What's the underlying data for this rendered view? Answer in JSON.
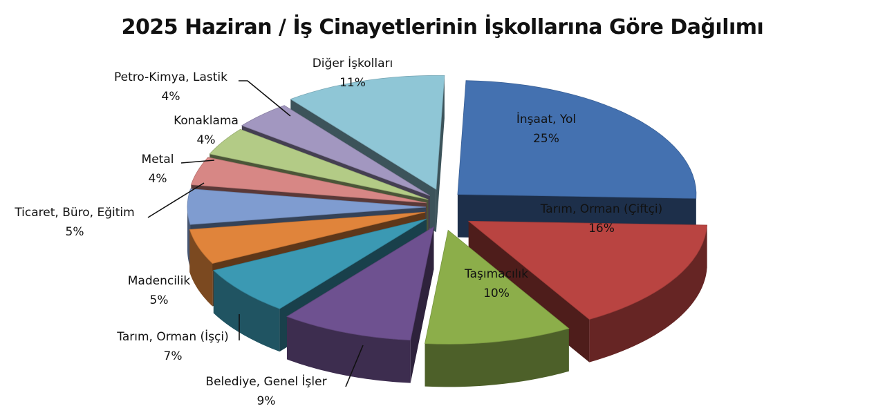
{
  "chart_data": {
    "type": "pie",
    "title": "2025 Haziran / İş Cinayetlerinin İşkollarına Göre Dağılımı",
    "slices": [
      {
        "name": "İnşaat, Yol",
        "value": 25,
        "label": "25%",
        "color": "#4471b0"
      },
      {
        "name": "Tarım, Orman (Çiftçi)",
        "value": 16,
        "label": "16%",
        "color": "#b94441"
      },
      {
        "name": "Taşımacılık",
        "value": 10,
        "label": "10%",
        "color": "#8cae4a"
      },
      {
        "name": "Belediye, Genel İşler",
        "value": 9,
        "label": "9%",
        "color": "#6e5190"
      },
      {
        "name": "Tarım, Orman (İşçi)",
        "value": 7,
        "label": "7%",
        "color": "#3b99b3"
      },
      {
        "name": "Madencilik",
        "value": 5,
        "label": "5%",
        "color": "#e0843b"
      },
      {
        "name": "Ticaret, Büro, Eğitim",
        "value": 5,
        "label": "5%",
        "color": "#7f9cd0"
      },
      {
        "name": "Metal",
        "value": 4,
        "label": "4%",
        "color": "#d78785"
      },
      {
        "name": "Konaklama",
        "value": 4,
        "label": "4%",
        "color": "#b3cb86"
      },
      {
        "name": "Petro-Kimya, Lastik",
        "value": 4,
        "label": "4%",
        "color": "#a297c0"
      },
      {
        "name": "Diğer İşkolları",
        "value": 11,
        "label": "11%",
        "color": "#8fc6d6"
      }
    ]
  }
}
